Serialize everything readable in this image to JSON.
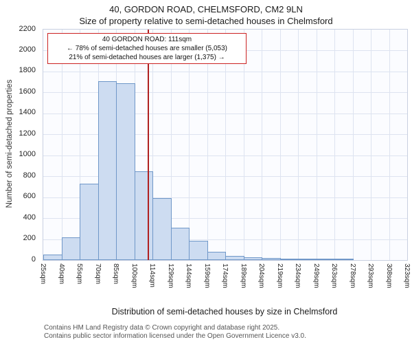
{
  "title": "40, GORDON ROAD, CHELMSFORD, CM2 9LN",
  "subtitle": "Size of property relative to semi-detached houses in Chelmsford",
  "annotation": {
    "line1": "40 GORDON ROAD: 111sqm",
    "line2": "← 78% of semi-detached houses are smaller (5,053)",
    "line3": "21% of semi-detached houses are larger (1,375) →"
  },
  "footer": {
    "line1": "Contains HM Land Registry data © Crown copyright and database right 2025.",
    "line2": "Contains public sector information licensed under the Open Government Licence v3.0."
  },
  "chart_data": {
    "type": "bar",
    "title": "40, GORDON ROAD, CHELMSFORD, CM2 9LN — Size of property relative to semi-detached houses in Chelmsford",
    "xlabel": "Distribution of semi-detached houses by size in Chelmsford",
    "ylabel": "Number of semi-detached properties",
    "categories": [
      "25sqm",
      "40sqm",
      "55sqm",
      "70sqm",
      "85sqm",
      "100sqm",
      "114sqm",
      "129sqm",
      "144sqm",
      "159sqm",
      "174sqm",
      "189sqm",
      "204sqm",
      "219sqm",
      "234sqm",
      "249sqm",
      "263sqm",
      "278sqm",
      "293sqm",
      "308sqm",
      "323sqm"
    ],
    "bin_edges": [
      25,
      40,
      55,
      70,
      85,
      100,
      114,
      129,
      144,
      159,
      174,
      189,
      204,
      219,
      234,
      249,
      263,
      278,
      293,
      308,
      323
    ],
    "values": [
      50,
      220,
      730,
      1710,
      1690,
      850,
      590,
      310,
      185,
      80,
      40,
      25,
      20,
      10,
      7,
      3,
      2,
      0,
      0,
      0
    ],
    "ylim": [
      0,
      2200
    ],
    "ytick_step": 200,
    "marker_value": 111,
    "legend": null,
    "grid": true,
    "colors": {
      "bar_fill": "#cddcf1",
      "bar_border": "#6f97c8",
      "marker": "#b02020",
      "grid": "#dde3f0",
      "annotation_border": "#cc2222"
    }
  }
}
